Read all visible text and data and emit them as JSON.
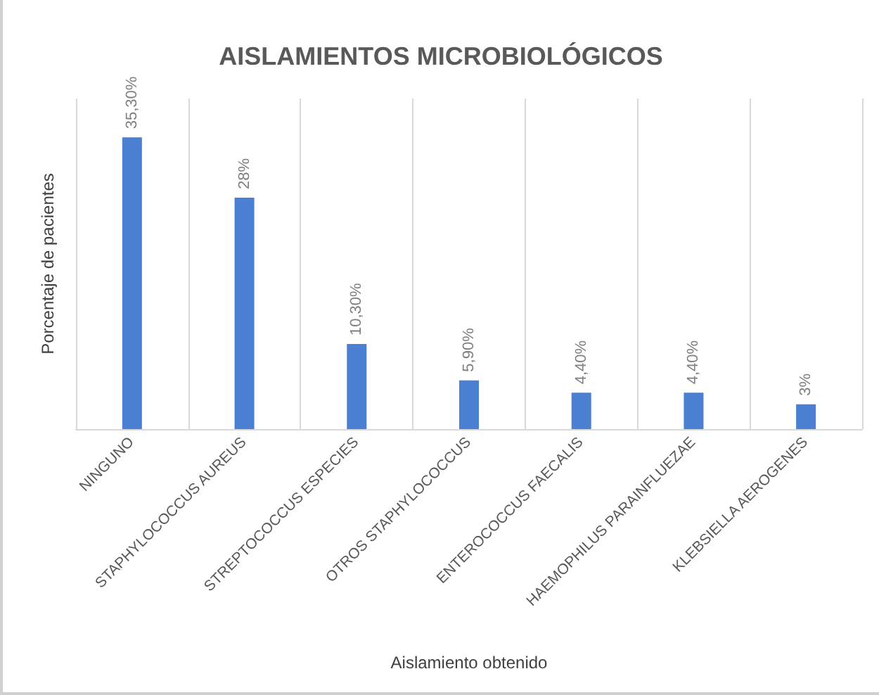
{
  "chart_data": {
    "type": "bar",
    "title": "AISLAMIENTOS MICROBIOLÓGICOS",
    "xlabel": "Aislamiento obtenido",
    "ylabel": "Porcentaje de pacientes",
    "categories": [
      "NINGUNO",
      "STAPHYLOCOCCUS AUREUS",
      "STREPTOCOCCUS ESPECIES",
      "OTROS STAPHYLOCOCCUS",
      "ENTEROCOCCUS FAECALIS",
      "HAEMOPHILUS PARAINFLUEZAE",
      "KLEBSIELLA AEROGENES"
    ],
    "values": [
      35.3,
      28,
      10.3,
      5.9,
      4.4,
      4.4,
      3
    ],
    "value_labels": [
      "35,30%",
      "28%",
      "10,30%",
      "5,90%",
      "4,40%",
      "4,40%",
      "3%"
    ],
    "color": "#4a7fd1",
    "grid": "x",
    "tick_labels": "x"
  }
}
